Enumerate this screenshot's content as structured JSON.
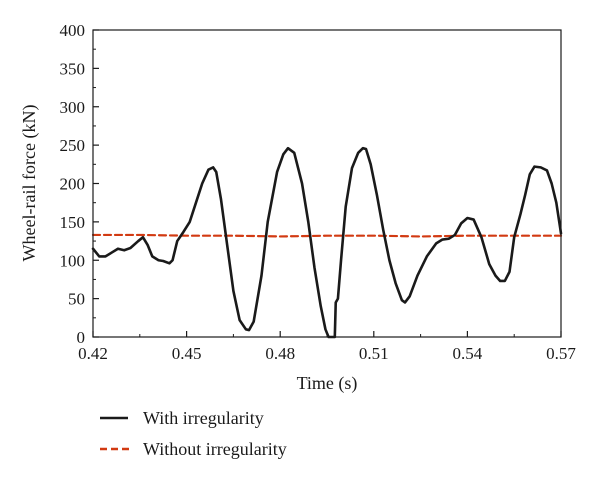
{
  "chart_data": {
    "type": "line",
    "xlabel": "Time (s)",
    "ylabel": "Wheel-rail force (kN)",
    "xlim": [
      0.42,
      0.57
    ],
    "ylim": [
      0,
      400
    ],
    "x_ticks": [
      "0.42",
      "0.45",
      "0.48",
      "0.51",
      "0.54",
      "0.57"
    ],
    "x_tick_values": [
      0.42,
      0.45,
      0.48,
      0.51,
      0.54,
      0.57
    ],
    "y_ticks": [
      "0",
      "50",
      "100",
      "150",
      "200",
      "250",
      "300",
      "350",
      "400"
    ],
    "y_tick_values": [
      0,
      50,
      100,
      150,
      200,
      250,
      300,
      350,
      400
    ],
    "legend_position": "bottom",
    "series": [
      {
        "name": "With irregularity",
        "color": "#1a1a1a",
        "dash": "solid",
        "points": [
          [
            0.42,
            115
          ],
          [
            0.422,
            105
          ],
          [
            0.424,
            105
          ],
          [
            0.426,
            110
          ],
          [
            0.428,
            115
          ],
          [
            0.43,
            113
          ],
          [
            0.432,
            116
          ],
          [
            0.4345,
            125
          ],
          [
            0.436,
            130
          ],
          [
            0.4375,
            120
          ],
          [
            0.439,
            105
          ],
          [
            0.441,
            100
          ],
          [
            0.4425,
            99
          ],
          [
            0.4445,
            96
          ],
          [
            0.4455,
            100
          ],
          [
            0.447,
            125
          ],
          [
            0.449,
            137
          ],
          [
            0.451,
            150
          ],
          [
            0.453,
            175
          ],
          [
            0.455,
            200
          ],
          [
            0.457,
            218
          ],
          [
            0.4585,
            221
          ],
          [
            0.4595,
            215
          ],
          [
            0.461,
            180
          ],
          [
            0.463,
            120
          ],
          [
            0.465,
            60
          ],
          [
            0.467,
            22
          ],
          [
            0.469,
            10
          ],
          [
            0.47,
            9
          ],
          [
            0.4715,
            20
          ],
          [
            0.474,
            80
          ],
          [
            0.476,
            150
          ],
          [
            0.479,
            215
          ],
          [
            0.481,
            238
          ],
          [
            0.4825,
            246
          ],
          [
            0.4845,
            240
          ],
          [
            0.487,
            200
          ],
          [
            0.489,
            150
          ],
          [
            0.491,
            90
          ],
          [
            0.493,
            40
          ],
          [
            0.4945,
            10
          ],
          [
            0.4955,
            0
          ],
          [
            0.4975,
            0
          ],
          [
            0.4978,
            45
          ],
          [
            0.4985,
            50
          ],
          [
            0.4995,
            100
          ],
          [
            0.501,
            170
          ],
          [
            0.503,
            220
          ],
          [
            0.505,
            240
          ],
          [
            0.5065,
            246
          ],
          [
            0.5075,
            245
          ],
          [
            0.509,
            225
          ],
          [
            0.511,
            185
          ],
          [
            0.513,
            140
          ],
          [
            0.515,
            100
          ],
          [
            0.517,
            70
          ],
          [
            0.519,
            48
          ],
          [
            0.52,
            45
          ],
          [
            0.5215,
            53
          ],
          [
            0.524,
            80
          ],
          [
            0.527,
            105
          ],
          [
            0.53,
            122
          ],
          [
            0.532,
            127
          ],
          [
            0.534,
            128
          ],
          [
            0.536,
            133
          ],
          [
            0.538,
            148
          ],
          [
            0.54,
            155
          ],
          [
            0.542,
            153
          ],
          [
            0.5445,
            130
          ],
          [
            0.547,
            95
          ],
          [
            0.549,
            80
          ],
          [
            0.5505,
            73
          ],
          [
            0.552,
            73
          ],
          [
            0.5535,
            85
          ],
          [
            0.555,
            130
          ],
          [
            0.557,
            160
          ],
          [
            0.5585,
            185
          ],
          [
            0.56,
            212
          ],
          [
            0.5615,
            222
          ],
          [
            0.5635,
            221
          ],
          [
            0.5655,
            217
          ],
          [
            0.567,
            200
          ],
          [
            0.5685,
            175
          ],
          [
            0.57,
            135
          ]
        ]
      },
      {
        "name": "Without irregularity",
        "color": "#d23a12",
        "dash": "dashed",
        "points": [
          [
            0.42,
            133
          ],
          [
            0.435,
            133
          ],
          [
            0.45,
            132
          ],
          [
            0.465,
            132
          ],
          [
            0.48,
            131
          ],
          [
            0.495,
            132
          ],
          [
            0.51,
            132
          ],
          [
            0.525,
            131
          ],
          [
            0.54,
            132
          ],
          [
            0.555,
            132
          ],
          [
            0.57,
            132
          ]
        ]
      }
    ]
  }
}
